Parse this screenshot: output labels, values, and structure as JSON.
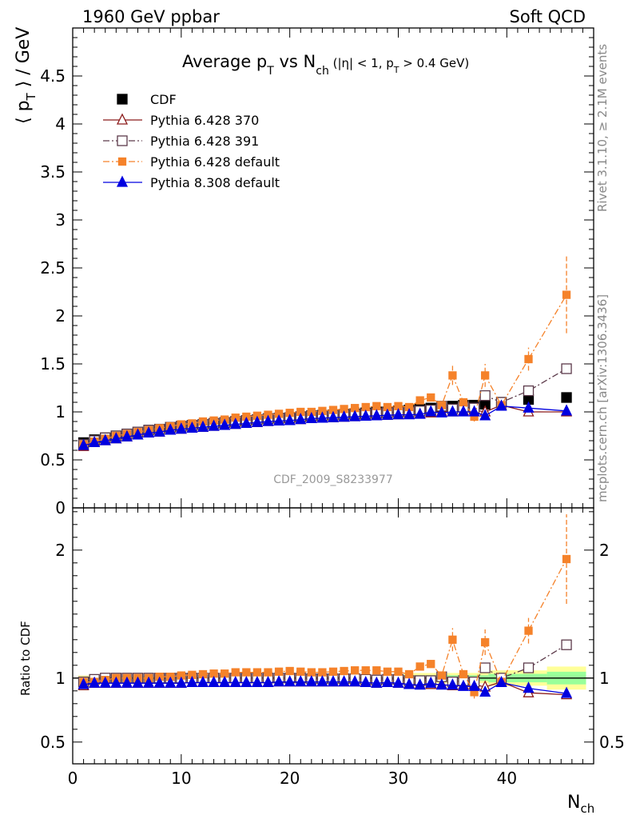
{
  "header": {
    "left": "1960 GeV ppbar",
    "right": "Soft QCD"
  },
  "side_labels": {
    "rivet": "Rivet 3.1.10, ≥ 2.1M events",
    "mcplots": "mcplots.cern.ch [arXiv:1306.3436]"
  },
  "watermark": "CDF_2009_S8233977",
  "title": {
    "main": "Average p",
    "main_sub": "T",
    "vs": " vs N",
    "vs_sub": "ch",
    "cuts_a": " (|η| < 1, p",
    "cuts_sub": "T",
    "cuts_b": " > 0.4 GeV)"
  },
  "axes": {
    "ylabel_main_a": "⟨ p",
    "ylabel_main_sub": "T",
    "ylabel_main_b": " ⟩ / GeV",
    "ylabel_ratio": "Ratio to CDF",
    "xlabel": "N",
    "xlabel_sub": "ch"
  },
  "chart_data": [
    {
      "type": "scatter",
      "panel": "main",
      "xlim": [
        0,
        48
      ],
      "ylim": [
        0,
        5
      ],
      "x_ticks": [
        "0",
        "10",
        "20",
        "30",
        "40"
      ],
      "y_ticks": [
        "0",
        "0.5",
        "1",
        "1.5",
        "2",
        "2.5",
        "3",
        "3.5",
        "4",
        "4.5"
      ],
      "legend_position": "top-left",
      "series": [
        {
          "name": "CDF",
          "color": "#000000",
          "marker": "square-filled",
          "line": "none",
          "x": [
            1,
            2,
            3,
            4,
            5,
            6,
            7,
            8,
            9,
            10,
            11,
            12,
            13,
            14,
            15,
            16,
            17,
            18,
            19,
            20,
            21,
            22,
            23,
            24,
            25,
            26,
            27,
            28,
            29,
            30,
            31,
            32,
            33,
            34,
            35,
            36,
            37,
            38,
            39.5,
            42,
            45.5
          ],
          "y": [
            0.68,
            0.71,
            0.73,
            0.75,
            0.77,
            0.79,
            0.81,
            0.82,
            0.84,
            0.85,
            0.86,
            0.87,
            0.88,
            0.89,
            0.9,
            0.91,
            0.92,
            0.93,
            0.935,
            0.94,
            0.95,
            0.96,
            0.965,
            0.97,
            0.975,
            0.98,
            0.99,
            1.0,
            1.0,
            1.01,
            1.02,
            1.03,
            1.04,
            1.05,
            1.06,
            1.07,
            1.07,
            1.08,
            1.1,
            1.13,
            1.15
          ]
        },
        {
          "name": "Pythia 6.428 370",
          "color": "#8b1a1a",
          "marker": "triangle-open",
          "line": "solid",
          "x": [
            1,
            2,
            3,
            4,
            5,
            6,
            7,
            8,
            9,
            10,
            11,
            12,
            13,
            14,
            15,
            16,
            17,
            18,
            19,
            20,
            21,
            22,
            23,
            24,
            25,
            26,
            27,
            28,
            29,
            30,
            31,
            32,
            33,
            34,
            35,
            36,
            37,
            38,
            39.5,
            42,
            45.5
          ],
          "y": [
            0.64,
            0.68,
            0.7,
            0.72,
            0.74,
            0.76,
            0.78,
            0.79,
            0.81,
            0.82,
            0.83,
            0.84,
            0.85,
            0.86,
            0.87,
            0.88,
            0.89,
            0.9,
            0.905,
            0.91,
            0.92,
            0.93,
            0.935,
            0.94,
            0.945,
            0.95,
            0.96,
            0.96,
            0.965,
            0.97,
            0.975,
            0.98,
            0.99,
            1.0,
            1.0,
            1.01,
            1.02,
            1.0,
            1.07,
            1.0,
            1.0
          ]
        },
        {
          "name": "Pythia 6.428 391",
          "color": "#5c3a4a",
          "marker": "square-open",
          "line": "dash-dot",
          "x": [
            1,
            2,
            3,
            4,
            5,
            6,
            7,
            8,
            9,
            10,
            11,
            12,
            13,
            14,
            15,
            16,
            17,
            18,
            19,
            20,
            21,
            22,
            23,
            24,
            25,
            26,
            27,
            28,
            29,
            30,
            31,
            32,
            33,
            34,
            35,
            36,
            37,
            38,
            39.5,
            42,
            45.5
          ],
          "y": [
            0.66,
            0.7,
            0.73,
            0.75,
            0.77,
            0.79,
            0.81,
            0.82,
            0.84,
            0.85,
            0.86,
            0.87,
            0.88,
            0.89,
            0.9,
            0.91,
            0.92,
            0.93,
            0.935,
            0.94,
            0.95,
            0.955,
            0.96,
            0.965,
            0.97,
            0.975,
            0.98,
            0.985,
            0.99,
            1.0,
            1.0,
            1.01,
            1.02,
            1.06,
            1.03,
            1.05,
            1.04,
            1.17,
            1.1,
            1.22,
            1.45
          ]
        },
        {
          "name": "Pythia 6.428 default",
          "color": "#f5822a",
          "marker": "square-filled-small",
          "line": "dash-dot",
          "x": [
            1,
            2,
            3,
            4,
            5,
            6,
            7,
            8,
            9,
            10,
            11,
            12,
            13,
            14,
            15,
            16,
            17,
            18,
            19,
            20,
            21,
            22,
            23,
            24,
            25,
            26,
            27,
            28,
            29,
            30,
            31,
            32,
            33,
            34,
            35,
            36,
            37,
            38,
            39.5,
            42,
            45.5
          ],
          "y": [
            0.66,
            0.69,
            0.72,
            0.75,
            0.77,
            0.79,
            0.81,
            0.83,
            0.85,
            0.87,
            0.88,
            0.9,
            0.91,
            0.92,
            0.94,
            0.95,
            0.96,
            0.97,
            0.98,
            0.99,
            1.0,
            1.0,
            1.01,
            1.02,
            1.03,
            1.04,
            1.05,
            1.06,
            1.05,
            1.06,
            1.05,
            1.12,
            1.15,
            1.07,
            1.38,
            1.1,
            0.95,
            1.38,
            1.07,
            1.55,
            2.22
          ],
          "y_err": [
            0,
            0,
            0,
            0,
            0,
            0,
            0,
            0,
            0,
            0,
            0,
            0,
            0,
            0,
            0,
            0,
            0,
            0,
            0,
            0,
            0,
            0,
            0,
            0,
            0,
            0,
            0,
            0,
            0,
            0,
            0,
            0,
            0,
            0,
            0.1,
            0,
            0.05,
            0.12,
            0,
            0.12,
            0.4
          ]
        },
        {
          "name": "Pythia 8.308 default",
          "color": "#0000e0",
          "marker": "triangle-filled",
          "line": "solid",
          "x": [
            1,
            2,
            3,
            4,
            5,
            6,
            7,
            8,
            9,
            10,
            11,
            12,
            13,
            14,
            15,
            16,
            17,
            18,
            19,
            20,
            21,
            22,
            23,
            24,
            25,
            26,
            27,
            28,
            29,
            30,
            31,
            32,
            33,
            34,
            35,
            36,
            37,
            38,
            39.5,
            42,
            45.5
          ],
          "y": [
            0.65,
            0.68,
            0.7,
            0.72,
            0.74,
            0.76,
            0.78,
            0.79,
            0.81,
            0.82,
            0.83,
            0.84,
            0.85,
            0.86,
            0.87,
            0.88,
            0.89,
            0.9,
            0.905,
            0.91,
            0.92,
            0.93,
            0.935,
            0.94,
            0.945,
            0.95,
            0.955,
            0.96,
            0.965,
            0.97,
            0.97,
            0.975,
            1.0,
            0.99,
            1.0,
            1.0,
            1.0,
            0.96,
            1.06,
            1.04,
            1.01
          ]
        }
      ]
    },
    {
      "type": "scatter",
      "panel": "ratio",
      "xlim": [
        0,
        48
      ],
      "ylim": [
        0.33,
        2.33
      ],
      "y_ticks": [
        "0.5",
        "1",
        "2"
      ],
      "band_color_outer": "#ffff99",
      "band_color_inner": "#99ff99",
      "series": [
        {
          "name": "Pythia 6.428 370",
          "color": "#8b1a1a",
          "y": [
            0.94,
            0.96,
            0.96,
            0.96,
            0.96,
            0.96,
            0.96,
            0.96,
            0.96,
            0.96,
            0.965,
            0.965,
            0.965,
            0.965,
            0.965,
            0.965,
            0.965,
            0.965,
            0.97,
            0.97,
            0.97,
            0.97,
            0.97,
            0.97,
            0.97,
            0.97,
            0.97,
            0.96,
            0.965,
            0.96,
            0.955,
            0.95,
            0.95,
            0.95,
            0.94,
            0.945,
            0.95,
            0.93,
            0.97,
            0.885,
            0.87
          ]
        },
        {
          "name": "Pythia 6.428 391",
          "color": "#5c3a4a",
          "y": [
            0.97,
            0.99,
            1.0,
            1.0,
            1.0,
            1.0,
            1.0,
            1.0,
            1.0,
            1.0,
            1.0,
            1.0,
            1.0,
            1.0,
            1.0,
            1.0,
            1.0,
            1.0,
            1.0,
            1.0,
            1.0,
            0.995,
            0.995,
            0.995,
            0.995,
            0.995,
            0.99,
            0.985,
            0.99,
            0.99,
            0.98,
            0.98,
            0.98,
            1.01,
            0.97,
            0.98,
            0.97,
            1.08,
            1.0,
            1.08,
            1.26
          ]
        },
        {
          "name": "Pythia 6.428 default",
          "color": "#f5822a",
          "y": [
            0.97,
            0.97,
            0.985,
            1.0,
            1.0,
            1.0,
            1.0,
            1.01,
            1.01,
            1.02,
            1.025,
            1.03,
            1.035,
            1.035,
            1.045,
            1.045,
            1.045,
            1.045,
            1.05,
            1.055,
            1.05,
            1.045,
            1.045,
            1.05,
            1.055,
            1.06,
            1.06,
            1.06,
            1.05,
            1.05,
            1.03,
            1.09,
            1.11,
            1.02,
            1.3,
            1.03,
            0.89,
            1.28,
            0.97,
            1.37,
            1.93
          ],
          "y_err": [
            0,
            0,
            0,
            0,
            0,
            0,
            0,
            0,
            0,
            0,
            0,
            0,
            0,
            0,
            0,
            0,
            0,
            0,
            0,
            0,
            0,
            0,
            0,
            0,
            0,
            0,
            0,
            0,
            0,
            0,
            0,
            0,
            0,
            0,
            0.09,
            0,
            0.05,
            0.1,
            0,
            0.1,
            0.35
          ]
        },
        {
          "name": "Pythia 8.308 default",
          "color": "#0000e0",
          "y": [
            0.95,
            0.96,
            0.96,
            0.96,
            0.96,
            0.96,
            0.96,
            0.96,
            0.96,
            0.96,
            0.965,
            0.965,
            0.965,
            0.965,
            0.965,
            0.965,
            0.965,
            0.965,
            0.97,
            0.97,
            0.97,
            0.97,
            0.97,
            0.97,
            0.97,
            0.97,
            0.965,
            0.96,
            0.965,
            0.96,
            0.95,
            0.945,
            0.96,
            0.945,
            0.945,
            0.935,
            0.935,
            0.89,
            0.965,
            0.92,
            0.88
          ]
        }
      ]
    }
  ]
}
